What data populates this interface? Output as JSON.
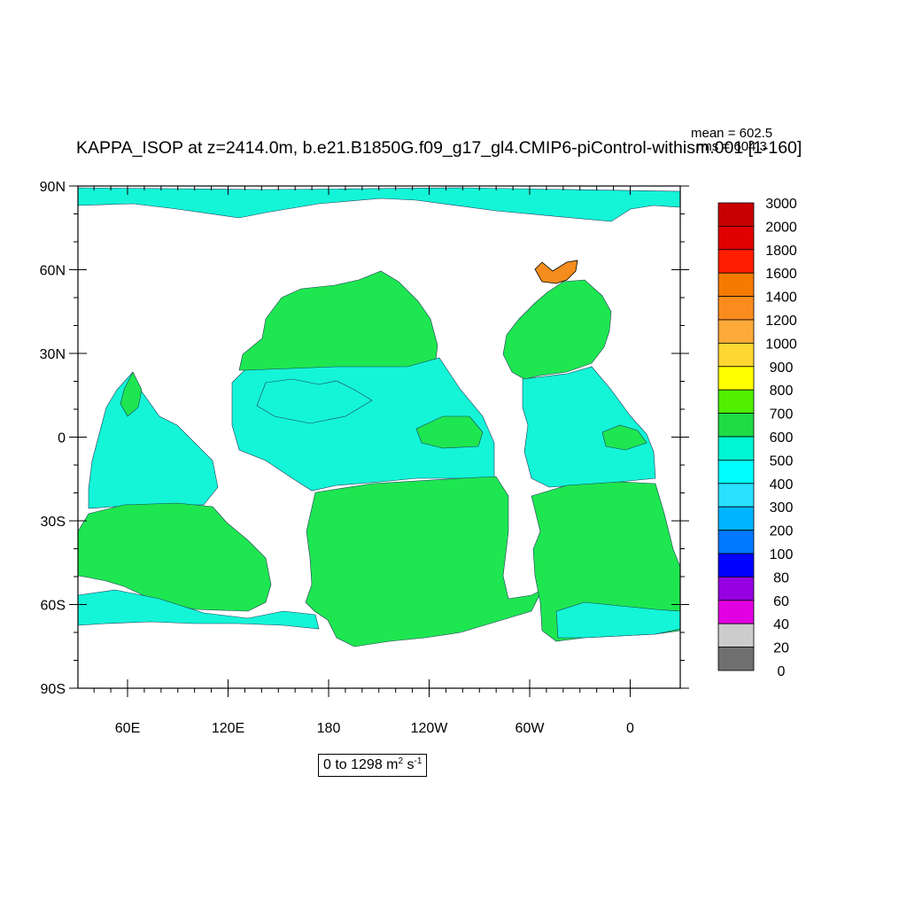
{
  "title": "KAPPA_ISOP at z=2414.0m, b.e21.B1850G.f09_g17_gl4.CMIP6-piControl-withism.001 [1-160]",
  "stats": {
    "mean": "mean = 602.5",
    "rms": "rms = 604.3"
  },
  "units": {
    "range": "0 to 1298 m",
    "exp1": "2",
    "mid": " s",
    "exp2": "-1"
  },
  "lat_labels": [
    "90N",
    "60N",
    "30N",
    "0",
    "30S",
    "60S",
    "90S"
  ],
  "lon_labels": [
    "60E",
    "120E",
    "180",
    "120W",
    "60W",
    "0"
  ],
  "legend": {
    "levels": [
      "3000",
      "2000",
      "1800",
      "1600",
      "1400",
      "1200",
      "1000",
      "900",
      "800",
      "700",
      "600",
      "500",
      "400",
      "300",
      "200",
      "100",
      "80",
      "60",
      "40",
      "20",
      "0"
    ],
    "colors": [
      "#c80000",
      "#e00000",
      "#ff1e00",
      "#f57a00",
      "#fa8c1e",
      "#fdaa3a",
      "#ffd732",
      "#ffff00",
      "#50f000",
      "#1edc46",
      "#00f5d2",
      "#00ffff",
      "#28e1ff",
      "#00b4ff",
      "#0078ff",
      "#0000ff",
      "#9600e1",
      "#e100e1",
      "#cccccc",
      "#707070"
    ]
  },
  "map_colors": {
    "green": "#1ee650",
    "cyan": "#14f5d7",
    "orange": "#f58c1e",
    "contour": "#1e3c5a"
  }
}
